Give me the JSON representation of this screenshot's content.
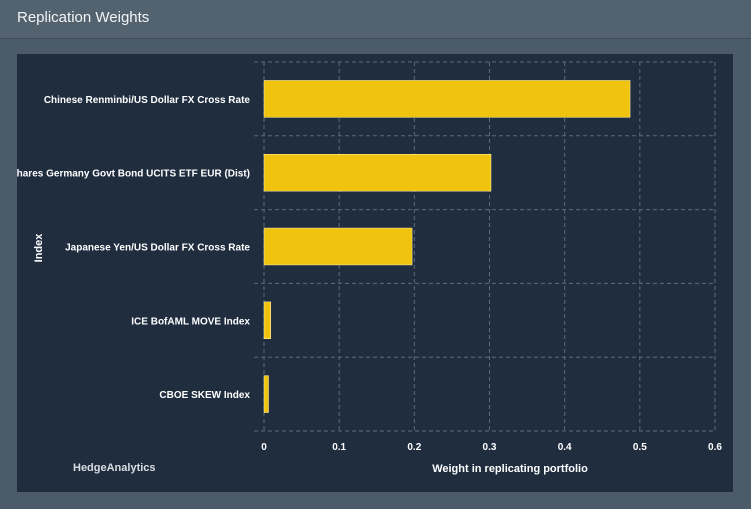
{
  "panel": {
    "title": "Replication Weights"
  },
  "chart_data": {
    "type": "bar",
    "orientation": "horizontal",
    "categories": [
      "Chinese Renminbi/US Dollar FX Cross Rate",
      "iShares Germany Govt Bond UCITS ETF EUR (Dist)",
      "Japanese Yen/US Dollar FX Cross Rate",
      "ICE BofAML MOVE Index",
      "CBOE SKEW Index"
    ],
    "values": [
      0.487,
      0.302,
      0.197,
      0.009,
      0.006
    ],
    "xlabel": "Weight in replicating portfolio",
    "ylabel": "Index",
    "xlim": [
      0,
      0.6
    ],
    "xticks": [
      "0",
      "0.1",
      "0.2",
      "0.3",
      "0.4",
      "0.5",
      "0.6"
    ],
    "grid": true,
    "bar_color": "#f0c30f",
    "watermark": "HedgeAnalytics"
  }
}
